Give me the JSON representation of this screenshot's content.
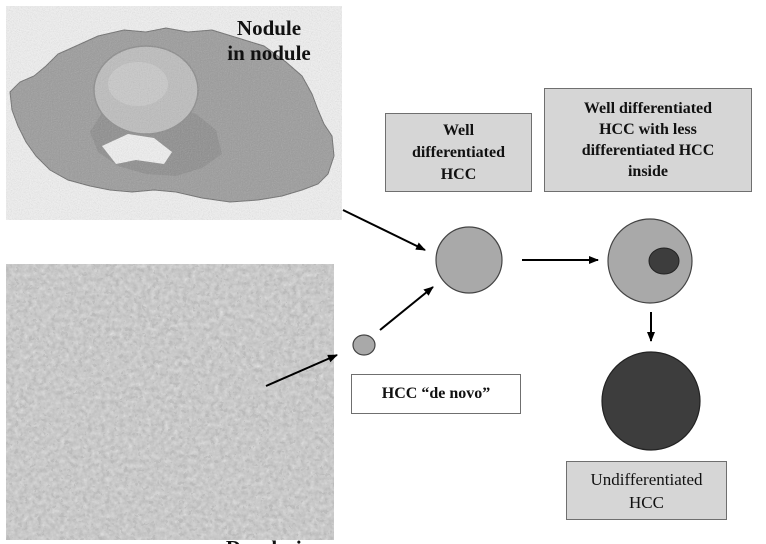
{
  "photos": {
    "top": {
      "label_line1": "Nodule",
      "label_line2": "in nodule"
    },
    "bottom": {
      "label": "Dysplasia"
    }
  },
  "boxes": {
    "well_differentiated": {
      "lines": [
        "Well",
        "differentiated",
        "HCC"
      ]
    },
    "well_differentiated_less_inside": {
      "lines": [
        "Well differentiated",
        "HCC with less",
        "differentiated HCC",
        "inside"
      ]
    },
    "de_novo": {
      "text": "HCC “de novo”"
    },
    "undifferentiated": {
      "lines": [
        "Undifferentiated",
        "HCC"
      ]
    }
  },
  "colors": {
    "light_circle": "#a9a9a9",
    "dark_circle": "#3d3d3d",
    "box_fill": "#d6d6d6",
    "arrow": "#000000"
  }
}
